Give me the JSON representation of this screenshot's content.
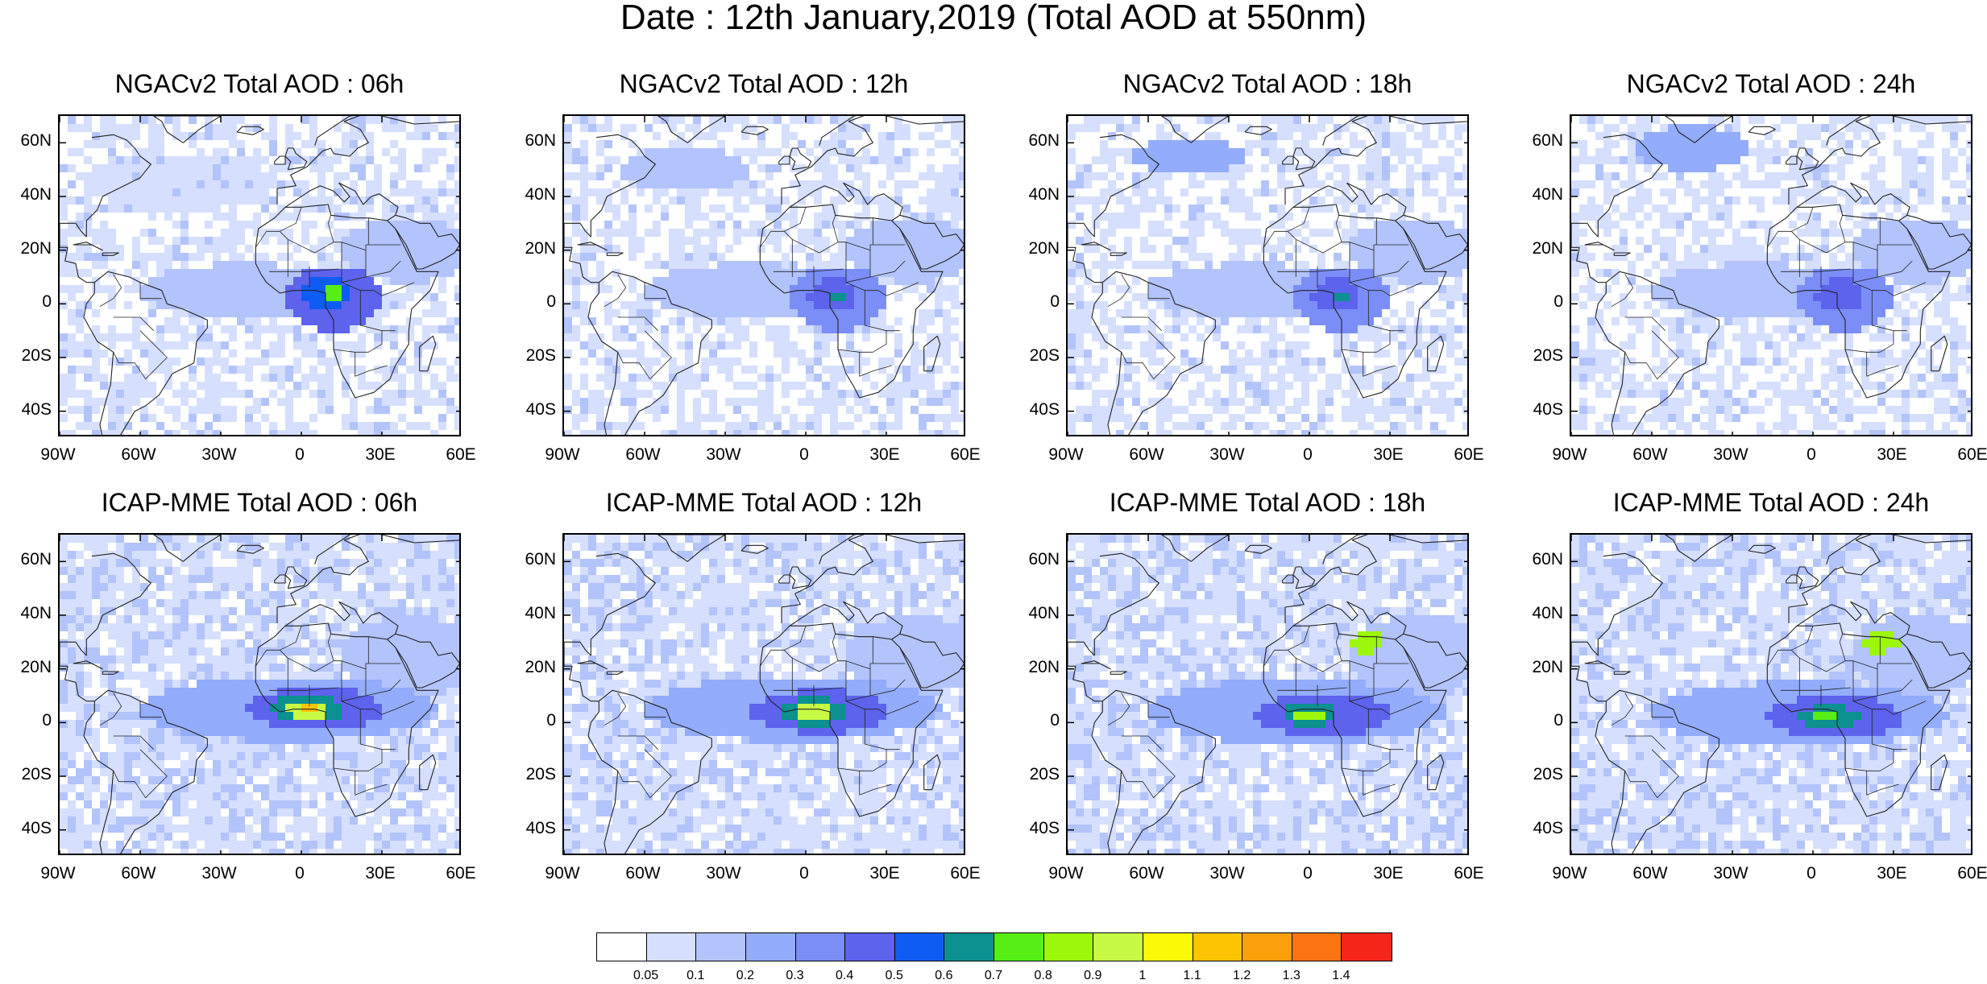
{
  "title": "Date : 12th January,2019 (Total AOD at 550nm)",
  "panels": [
    {
      "title": "NGACv2 Total AOD : 06h",
      "model": "NGACv2",
      "hour": "06h",
      "features": [
        {
          "lon": 12,
          "lat": 2,
          "lonR": 18,
          "latR": 12,
          "level": 5
        },
        {
          "lon": 10,
          "lat": 4,
          "lonR": 9,
          "latR": 6,
          "level": 6
        },
        {
          "lon": 12,
          "lat": 3,
          "lonR": 4,
          "latR": 3,
          "level": 8
        },
        {
          "lon": -20,
          "lat": 5,
          "lonR": 40,
          "latR": 10,
          "level": 2
        },
        {
          "lon": -45,
          "lat": 45,
          "lonR": 35,
          "latR": 10,
          "level": 1
        },
        {
          "lon": 40,
          "lat": 20,
          "lonR": 25,
          "latR": 12,
          "level": 2
        }
      ]
    },
    {
      "title": "NGACv2 Total AOD : 12h",
      "model": "NGACv2",
      "hour": "12h",
      "features": [
        {
          "lon": 12,
          "lat": 2,
          "lonR": 18,
          "latR": 12,
          "level": 4
        },
        {
          "lon": 10,
          "lat": 3,
          "lonR": 9,
          "latR": 6,
          "level": 5
        },
        {
          "lon": 12,
          "lat": 3,
          "lonR": 3,
          "latR": 2,
          "level": 7
        },
        {
          "lon": -20,
          "lat": 5,
          "lonR": 40,
          "latR": 10,
          "level": 2
        },
        {
          "lon": -45,
          "lat": 50,
          "lonR": 25,
          "latR": 8,
          "level": 2
        },
        {
          "lon": 40,
          "lat": 20,
          "lonR": 25,
          "latR": 12,
          "level": 2
        }
      ]
    },
    {
      "title": "NGACv2 Total AOD : 18h",
      "model": "NGACv2",
      "hour": "18h",
      "features": [
        {
          "lon": 12,
          "lat": 2,
          "lonR": 18,
          "latR": 12,
          "level": 4
        },
        {
          "lon": 10,
          "lat": 3,
          "lonR": 9,
          "latR": 6,
          "level": 5
        },
        {
          "lon": 12,
          "lat": 2,
          "lonR": 3,
          "latR": 2,
          "level": 7
        },
        {
          "lon": -20,
          "lat": 5,
          "lonR": 40,
          "latR": 10,
          "level": 2
        },
        {
          "lon": -45,
          "lat": 55,
          "lonR": 20,
          "latR": 7,
          "level": 3
        },
        {
          "lon": 40,
          "lat": 20,
          "lonR": 25,
          "latR": 12,
          "level": 2
        }
      ]
    },
    {
      "title": "NGACv2 Total AOD : 24h",
      "model": "NGACv2",
      "hour": "24h",
      "features": [
        {
          "lon": 12,
          "lat": 2,
          "lonR": 18,
          "latR": 12,
          "level": 4
        },
        {
          "lon": 10,
          "lat": 3,
          "lonR": 9,
          "latR": 6,
          "level": 5
        },
        {
          "lon": -20,
          "lat": 5,
          "lonR": 40,
          "latR": 10,
          "level": 2
        },
        {
          "lon": -45,
          "lat": 58,
          "lonR": 22,
          "latR": 8,
          "level": 3
        },
        {
          "lon": 40,
          "lat": 20,
          "lonR": 25,
          "latR": 12,
          "level": 2
        }
      ]
    },
    {
      "title": "ICAP-MME Total AOD : 06h",
      "model": "ICAP-MME",
      "hour": "06h",
      "features": [
        {
          "lon": -5,
          "lat": 5,
          "lonR": 55,
          "latR": 12,
          "level": 3
        },
        {
          "lon": 5,
          "lat": 5,
          "lonR": 25,
          "latR": 8,
          "level": 5
        },
        {
          "lon": 2,
          "lat": 5,
          "lonR": 14,
          "latR": 5,
          "level": 7
        },
        {
          "lon": 2,
          "lat": 5,
          "lonR": 8,
          "latR": 3.5,
          "level": 10
        },
        {
          "lon": 2,
          "lat": 5,
          "lonR": 3,
          "latR": 2,
          "level": 12
        },
        {
          "lon": 40,
          "lat": 25,
          "lonR": 25,
          "latR": 15,
          "level": 2
        }
      ]
    },
    {
      "title": "ICAP-MME Total AOD : 12h",
      "model": "ICAP-MME",
      "hour": "12h",
      "features": [
        {
          "lon": -5,
          "lat": 5,
          "lonR": 55,
          "latR": 12,
          "level": 3
        },
        {
          "lon": 5,
          "lat": 4,
          "lonR": 25,
          "latR": 8,
          "level": 5
        },
        {
          "lon": 3,
          "lat": 4,
          "lonR": 12,
          "latR": 5,
          "level": 7
        },
        {
          "lon": 3,
          "lat": 4,
          "lonR": 6,
          "latR": 3,
          "level": 10
        },
        {
          "lon": 40,
          "lat": 25,
          "lonR": 25,
          "latR": 15,
          "level": 2
        }
      ]
    },
    {
      "title": "ICAP-MME Total AOD : 18h",
      "model": "ICAP-MME",
      "hour": "18h",
      "features": [
        {
          "lon": -5,
          "lat": 4,
          "lonR": 55,
          "latR": 12,
          "level": 3
        },
        {
          "lon": 5,
          "lat": 3,
          "lonR": 25,
          "latR": 8,
          "level": 5
        },
        {
          "lon": 0,
          "lat": 3,
          "lonR": 10,
          "latR": 4,
          "level": 7
        },
        {
          "lon": 0,
          "lat": 3,
          "lonR": 5,
          "latR": 2.5,
          "level": 9
        },
        {
          "lon": 22,
          "lat": 30,
          "lonR": 6,
          "latR": 4,
          "level": 9
        },
        {
          "lon": 40,
          "lat": 25,
          "lonR": 25,
          "latR": 15,
          "level": 2
        }
      ]
    },
    {
      "title": "ICAP-MME Total AOD : 24h",
      "model": "ICAP-MME",
      "hour": "24h",
      "features": [
        {
          "lon": -5,
          "lat": 3,
          "lonR": 55,
          "latR": 12,
          "level": 3
        },
        {
          "lon": 8,
          "lat": 2,
          "lonR": 25,
          "latR": 8,
          "level": 5
        },
        {
          "lon": 5,
          "lat": 2,
          "lonR": 12,
          "latR": 4,
          "level": 7
        },
        {
          "lon": 5,
          "lat": 2,
          "lonR": 5,
          "latR": 2,
          "level": 8
        },
        {
          "lon": 25,
          "lat": 30,
          "lonR": 7,
          "latR": 4,
          "level": 9
        },
        {
          "lon": 40,
          "lat": 25,
          "lonR": 25,
          "latR": 15,
          "level": 2
        }
      ]
    }
  ],
  "axes": {
    "lat_ticks": [
      "60N",
      "40N",
      "20N",
      "0",
      "20S",
      "40S"
    ],
    "lat_values": [
      60,
      40,
      20,
      0,
      -20,
      -40
    ],
    "lon_ticks": [
      "90W",
      "60W",
      "30W",
      "0",
      "30E",
      "60E"
    ],
    "lon_values": [
      -90,
      -60,
      -30,
      0,
      30,
      60
    ],
    "lon_range": [
      -90,
      60
    ],
    "lat_range": [
      -50,
      70
    ]
  },
  "colorbar": {
    "labels": [
      "0.05",
      "0.1",
      "0.2",
      "0.3",
      "0.4",
      "0.5",
      "0.6",
      "0.7",
      "0.8",
      "0.9",
      "1",
      "1.1",
      "1.2",
      "1.3",
      "1.4"
    ],
    "colors": [
      "#ffffff",
      "#d6dffd",
      "#b3c3fb",
      "#93acfb",
      "#7b8ef7",
      "#5d63ec",
      "#0f5cf4",
      "#0c9090",
      "#56ee14",
      "#9cf70c",
      "#c7fa44",
      "#fcf907",
      "#fcc403",
      "#fba00a",
      "#fa7512",
      "#f6251a"
    ]
  },
  "background_level": 1
}
